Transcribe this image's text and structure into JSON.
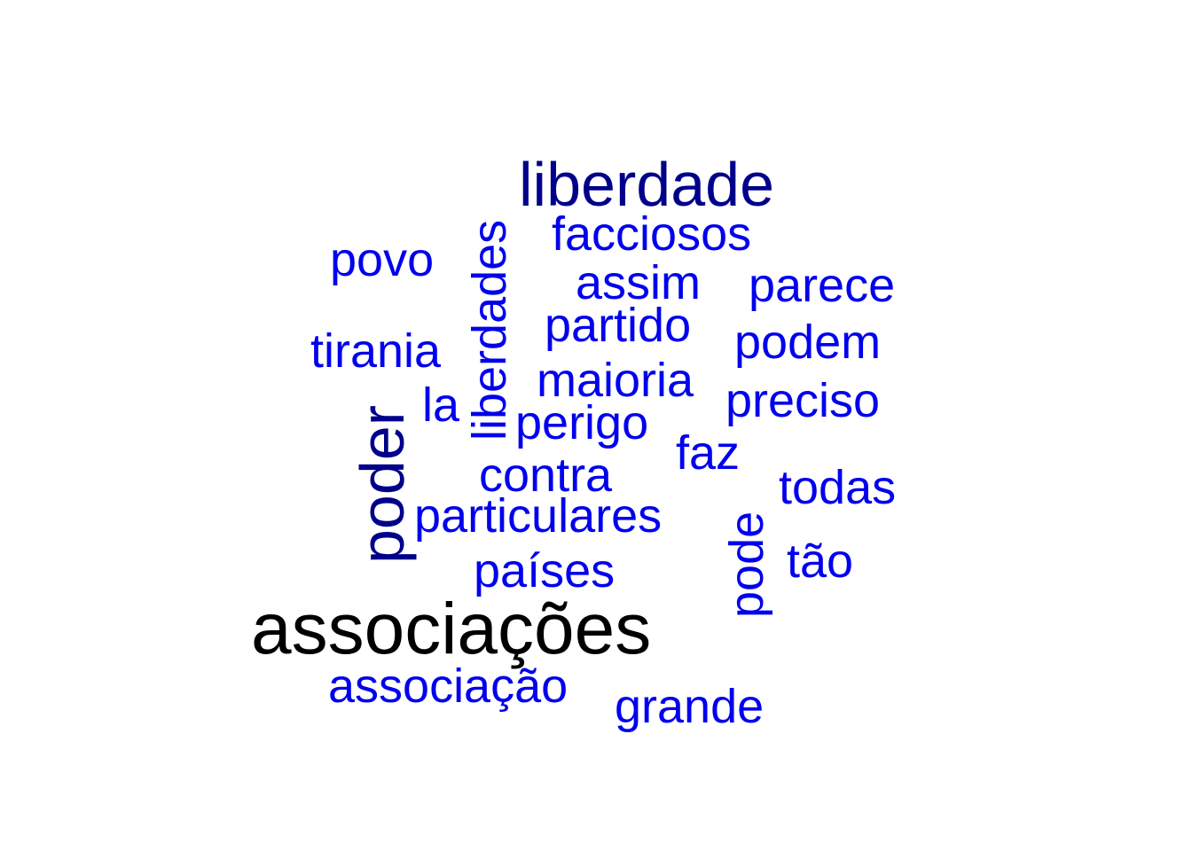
{
  "colors": {
    "top": "#000000",
    "second": "#00008b",
    "rest": "#0000ee"
  },
  "words": [
    {
      "id": "w-associacoes",
      "text": "associações",
      "weight": 1,
      "rotated": false,
      "color": "#000000"
    },
    {
      "id": "w-liberdade",
      "text": "liberdade",
      "weight": 2,
      "rotated": false,
      "color": "#00008b"
    },
    {
      "id": "w-poder",
      "text": "poder",
      "weight": 2,
      "rotated": true,
      "color": "#00008b"
    },
    {
      "id": "w-liberdades",
      "text": "liberdades",
      "weight": 3,
      "rotated": true,
      "color": "#0000ee"
    },
    {
      "id": "w-facciosos",
      "text": "facciosos",
      "weight": 3,
      "rotated": false,
      "color": "#0000ee"
    },
    {
      "id": "w-povo",
      "text": "povo",
      "weight": 3,
      "rotated": false,
      "color": "#0000ee"
    },
    {
      "id": "w-assim",
      "text": "assim",
      "weight": 3,
      "rotated": false,
      "color": "#0000ee"
    },
    {
      "id": "w-parece",
      "text": "parece",
      "weight": 3,
      "rotated": false,
      "color": "#0000ee"
    },
    {
      "id": "w-partido",
      "text": "partido",
      "weight": 3,
      "rotated": false,
      "color": "#0000ee"
    },
    {
      "id": "w-podem",
      "text": "podem",
      "weight": 3,
      "rotated": false,
      "color": "#0000ee"
    },
    {
      "id": "w-tirania",
      "text": "tirania",
      "weight": 3,
      "rotated": false,
      "color": "#0000ee"
    },
    {
      "id": "w-maioria",
      "text": "maioria",
      "weight": 3,
      "rotated": false,
      "color": "#0000ee"
    },
    {
      "id": "w-la",
      "text": "la",
      "weight": 3,
      "rotated": false,
      "color": "#0000ee"
    },
    {
      "id": "w-preciso",
      "text": "preciso",
      "weight": 3,
      "rotated": false,
      "color": "#0000ee"
    },
    {
      "id": "w-perigo",
      "text": "perigo",
      "weight": 3,
      "rotated": false,
      "color": "#0000ee"
    },
    {
      "id": "w-faz",
      "text": "faz",
      "weight": 3,
      "rotated": false,
      "color": "#0000ee"
    },
    {
      "id": "w-contra",
      "text": "contra",
      "weight": 3,
      "rotated": false,
      "color": "#0000ee"
    },
    {
      "id": "w-todas",
      "text": "todas",
      "weight": 3,
      "rotated": false,
      "color": "#0000ee"
    },
    {
      "id": "w-particulares",
      "text": "particulares",
      "weight": 3,
      "rotated": false,
      "color": "#0000ee"
    },
    {
      "id": "w-pode",
      "text": "pode",
      "weight": 3,
      "rotated": true,
      "color": "#0000ee"
    },
    {
      "id": "w-tao",
      "text": "tão",
      "weight": 3,
      "rotated": false,
      "color": "#0000ee"
    },
    {
      "id": "w-paises",
      "text": "países",
      "weight": 3,
      "rotated": false,
      "color": "#0000ee"
    },
    {
      "id": "w-associacao",
      "text": "associação",
      "weight": 3,
      "rotated": false,
      "color": "#0000ee"
    },
    {
      "id": "w-grande",
      "text": "grande",
      "weight": 3,
      "rotated": false,
      "color": "#0000ee"
    }
  ]
}
